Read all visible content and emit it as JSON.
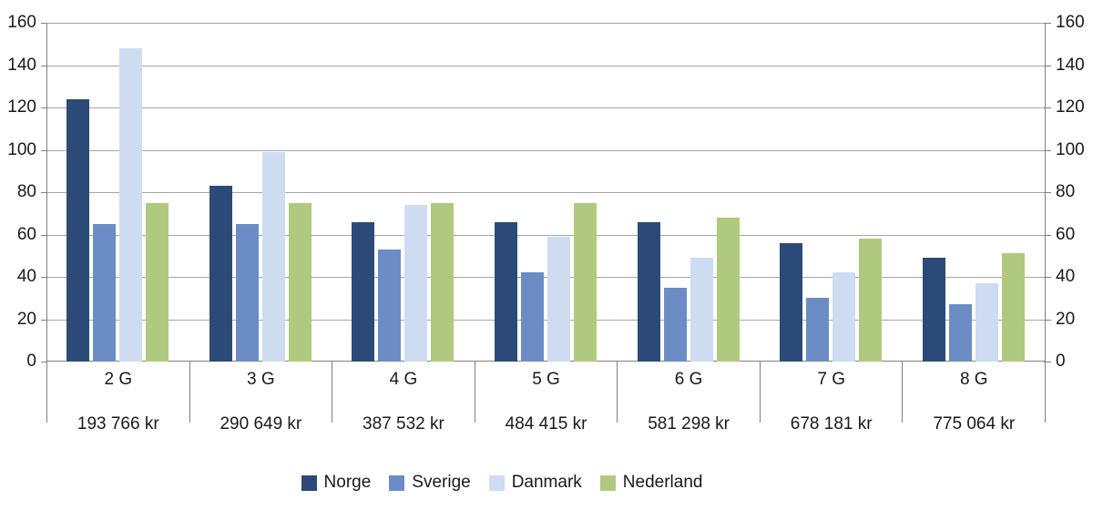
{
  "chart_data": {
    "type": "bar",
    "title": "",
    "categories": [
      "2 G",
      "3 G",
      "4 G",
      "5 G",
      "6 G",
      "7 G",
      "8 G"
    ],
    "category_sublabels": [
      "193 766 kr",
      "290 649 kr",
      "387 532 kr",
      "484 415 kr",
      "581 298 kr",
      "678 181 kr",
      "775 064 kr"
    ],
    "series": [
      {
        "name": "Norge",
        "color": "#2c4a78",
        "values": [
          124,
          83,
          66,
          66,
          66,
          56,
          49
        ]
      },
      {
        "name": "Sverige",
        "color": "#6c8cc5",
        "values": [
          65,
          65,
          53,
          42,
          35,
          30,
          27
        ]
      },
      {
        "name": "Danmark",
        "color": "#cedcf2",
        "values": [
          148,
          99,
          74,
          59,
          49,
          42,
          37
        ]
      },
      {
        "name": "Nederland",
        "color": "#afca7e",
        "values": [
          75,
          75,
          75,
          75,
          68,
          58,
          51
        ]
      }
    ],
    "y_axis": {
      "min": 0,
      "max": 160,
      "step": 20,
      "tick_labels": [
        "0",
        "20",
        "40",
        "60",
        "80",
        "100",
        "120",
        "140",
        "160"
      ],
      "label_sides": "left and right"
    },
    "grid": true,
    "legend_position": "bottom",
    "style_colors": {
      "gridline": "#a6a6a6",
      "axis_line": "#808080",
      "text": "#1a1a1a",
      "background": "#ffffff"
    }
  }
}
